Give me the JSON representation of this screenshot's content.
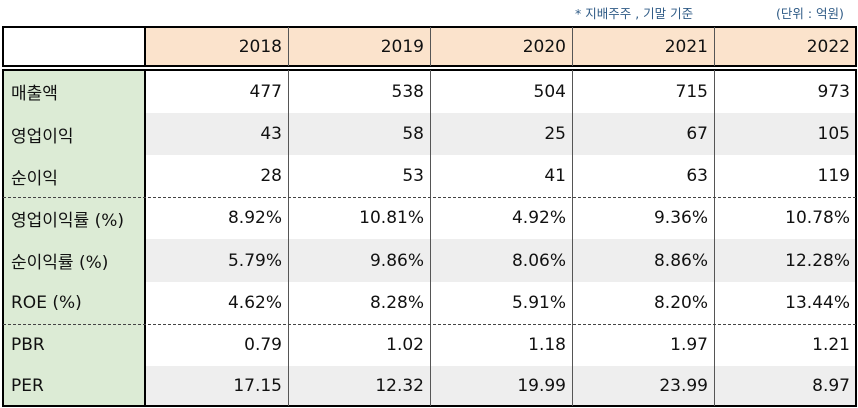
{
  "notes": {
    "basis": "* 지배주주 , 기말 기준",
    "unit": "(단위 : 억원)"
  },
  "header": {
    "corner": "",
    "years": [
      "2018",
      "2019",
      "2020",
      "2021",
      "2022"
    ]
  },
  "rows": [
    {
      "label": "매출액",
      "values": [
        "477",
        "538",
        "504",
        "715",
        "973"
      ]
    },
    {
      "label": "영업이익",
      "values": [
        "43",
        "58",
        "25",
        "67",
        "105"
      ]
    },
    {
      "label": "순이익",
      "values": [
        "28",
        "53",
        "41",
        "63",
        "119"
      ]
    },
    {
      "label": "영업이익률 (%)",
      "values": [
        "8.92%",
        "10.81%",
        "4.92%",
        "9.36%",
        "10.78%"
      ]
    },
    {
      "label": "순이익률 (%)",
      "values": [
        "5.79%",
        "9.86%",
        "8.06%",
        "8.86%",
        "12.28%"
      ]
    },
    {
      "label": "ROE (%)",
      "values": [
        "4.62%",
        "8.28%",
        "5.91%",
        "8.20%",
        "13.44%"
      ]
    },
    {
      "label": "PBR",
      "values": [
        "0.79",
        "1.02",
        "1.18",
        "1.97",
        "1.21"
      ]
    },
    {
      "label": "PER",
      "values": [
        "17.15",
        "12.32",
        "19.99",
        "23.99",
        "8.97"
      ]
    }
  ],
  "colors": {
    "header_bg": "#fbe3cc",
    "label_bg": "#dcebd5",
    "band_bg": "#eeeeee"
  }
}
